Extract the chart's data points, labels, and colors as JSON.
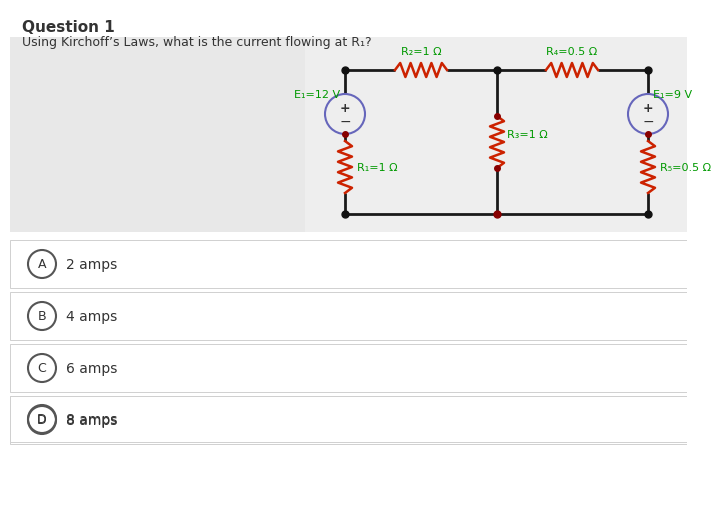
{
  "title": "Question 1",
  "question": "Using Kirchoff’s Laws, what is the current flowing at R₁?",
  "bg_color": "#ffffff",
  "wire_color": "#1a1a1a",
  "resistor_color": "#cc2200",
  "label_color": "#009900",
  "source_color": "#6666bb",
  "dot_color_dark": "#880000",
  "dot_color_black": "#111111",
  "options": [
    {
      "letter": "A",
      "text": "2 amps"
    },
    {
      "letter": "B",
      "text": "4 amps"
    },
    {
      "letter": "C",
      "text": "6 amps"
    },
    {
      "letter": "D",
      "text": "8 amps"
    }
  ],
  "circuit": {
    "E1_label": "E₁=12 V",
    "E2_label": "E₁=9 V",
    "R1_label": "R₁=1 Ω",
    "R2_label": "R₂=1 Ω",
    "R3_label": "R₃=1 Ω",
    "R4_label": "R₄=0.5 Ω",
    "R5_label": "R₅=0.5 Ω"
  }
}
